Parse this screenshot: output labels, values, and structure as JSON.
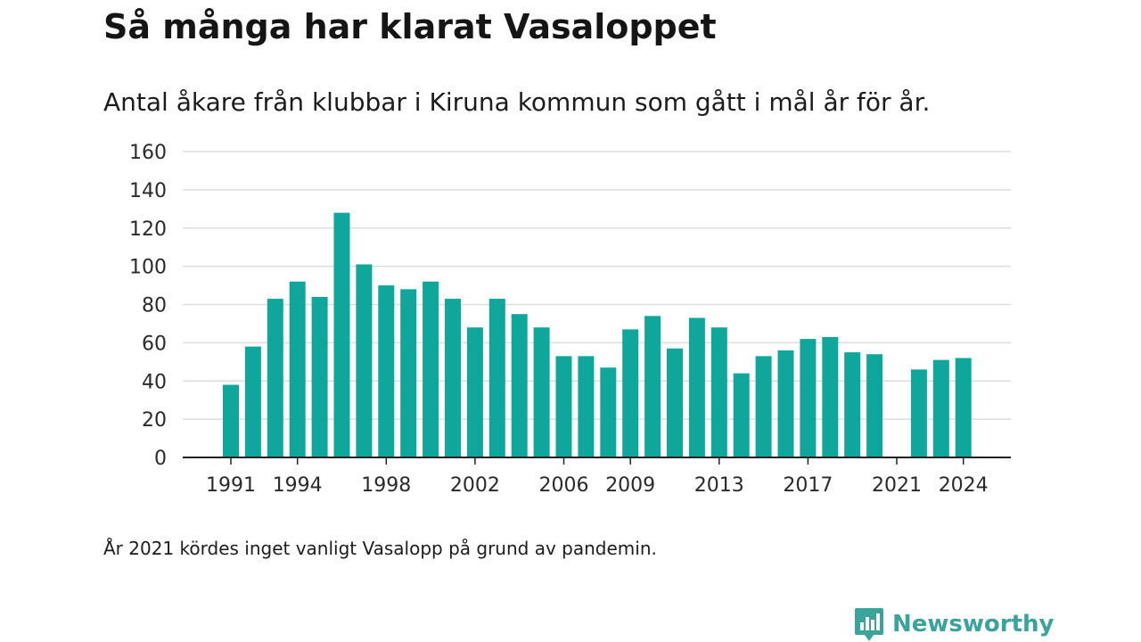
{
  "title": "Så många har klarat Vasaloppet",
  "subtitle": "Antal åkare från klubbar i Kiruna kommun som gått i mål år för år.",
  "note": "År 2021 kördes inget vanligt Vasalopp på grund av pandemin.",
  "brand": {
    "name": "Newsworthy",
    "icon": "newsworthy-logo-icon",
    "color": "#3aa39a"
  },
  "colors": {
    "bar": "#0fa79b",
    "grid": "#dddddd",
    "axis": "#222222"
  },
  "chart_data": {
    "type": "bar",
    "categories": [
      "1991",
      "1992",
      "1993",
      "1994",
      "1995",
      "1996",
      "1997",
      "1998",
      "1999",
      "2000",
      "2001",
      "2002",
      "2003",
      "2004",
      "2005",
      "2006",
      "2007",
      "2008",
      "2009",
      "2010",
      "2011",
      "2012",
      "2013",
      "2014",
      "2015",
      "2016",
      "2017",
      "2018",
      "2019",
      "2020",
      "2021",
      "2022",
      "2023",
      "2024"
    ],
    "values": [
      38,
      58,
      83,
      92,
      84,
      128,
      101,
      90,
      88,
      92,
      83,
      68,
      83,
      75,
      68,
      53,
      53,
      47,
      67,
      74,
      57,
      73,
      68,
      44,
      53,
      56,
      62,
      63,
      55,
      54,
      null,
      46,
      51,
      52
    ],
    "x_tick_labels": [
      "1991",
      "1994",
      "1998",
      "2002",
      "2006",
      "2009",
      "2013",
      "2017",
      "2021",
      "2024"
    ],
    "y_ticks": [
      0,
      20,
      40,
      60,
      80,
      100,
      120,
      140,
      160
    ],
    "ylim": [
      0,
      160
    ],
    "grid": true,
    "legend": "none"
  }
}
